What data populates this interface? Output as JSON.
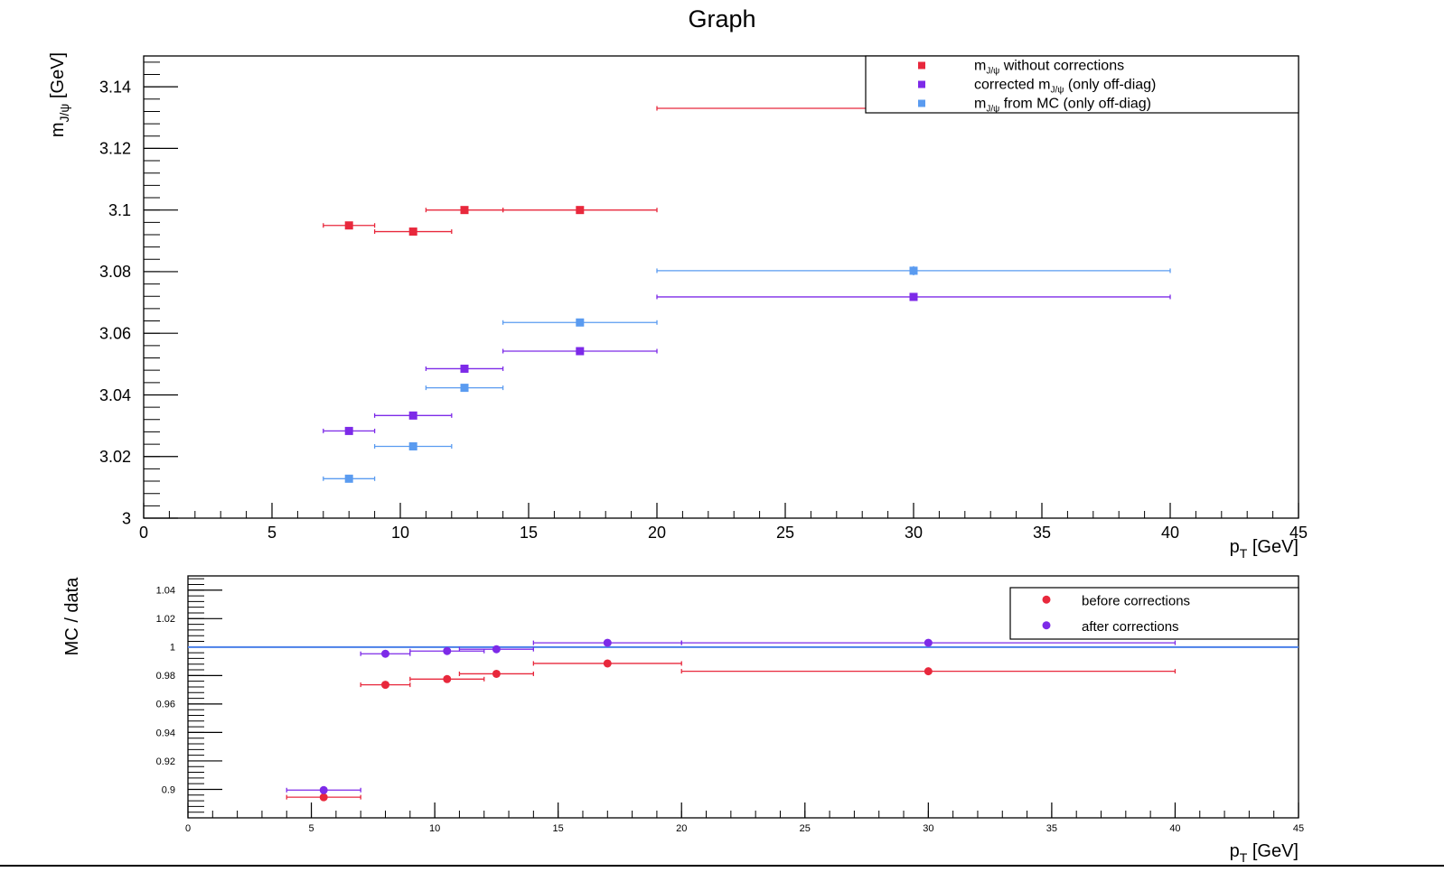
{
  "chart_data": [
    {
      "type": "scatter",
      "title": "Graph",
      "xlabel": "p",
      "xlabel_sub": "T",
      "xlabel_unit": " [GeV]",
      "ylabel": "m",
      "ylabel_sub": "J/ψ",
      "ylabel_unit": " [GeV]",
      "xlim": [
        0,
        45
      ],
      "ylim": [
        3.0,
        3.15
      ],
      "x_ticks": [
        0,
        5,
        10,
        15,
        20,
        25,
        30,
        35,
        40,
        45
      ],
      "x_tick_labels": [
        "0",
        "5",
        "10",
        "15",
        "20",
        "25",
        "30",
        "35",
        "40",
        "45"
      ],
      "y_ticks": [
        3.0,
        3.02,
        3.04,
        3.06,
        3.08,
        3.1,
        3.12,
        3.14
      ],
      "y_tick_labels": [
        "3",
        "3.02",
        "3.04",
        "3.06",
        "3.08",
        "3.1",
        "3.12",
        "3.14"
      ],
      "legend_position": "top-right",
      "marker": "square",
      "series": [
        {
          "legend_pre": "m",
          "legend_sub": "J/ψ",
          "legend_post": " without corrections",
          "color": "#e8283c",
          "points": [
            {
              "x": 8,
              "xlo": 7,
              "xhi": 9,
              "y": 3.095,
              "ey": 0.0008
            },
            {
              "x": 10.5,
              "xlo": 9,
              "xhi": 12,
              "y": 3.093,
              "ey": 0
            },
            {
              "x": 12.5,
              "xlo": 11,
              "xhi": 14,
              "y": 3.1,
              "ey": 0
            },
            {
              "x": 17,
              "xlo": 14,
              "xhi": 20,
              "y": 3.1,
              "ey": 0
            },
            {
              "x": 30,
              "xlo": 20,
              "xhi": 40,
              "y": 3.133,
              "ey": 0
            }
          ]
        },
        {
          "legend_pre": "corrected m",
          "legend_sub": "J/ψ",
          "legend_post": " (only off-diag)",
          "color": "#7d2ae8",
          "points": [
            {
              "x": 8,
              "xlo": 7,
              "xhi": 9,
              "y": 3.0283,
              "ey": 0
            },
            {
              "x": 10.5,
              "xlo": 9,
              "xhi": 12,
              "y": 3.0333,
              "ey": 0
            },
            {
              "x": 12.5,
              "xlo": 11,
              "xhi": 14,
              "y": 3.0485,
              "ey": 0
            },
            {
              "x": 17,
              "xlo": 14,
              "xhi": 20,
              "y": 3.0542,
              "ey": 0
            },
            {
              "x": 30,
              "xlo": 20,
              "xhi": 40,
              "y": 3.0718,
              "ey": 0
            }
          ]
        },
        {
          "legend_pre": "m",
          "legend_sub": "J/ψ",
          "legend_post": " from MC (only off-diag)",
          "color": "#5a9bf0",
          "points": [
            {
              "x": 8,
              "xlo": 7,
              "xhi": 9,
              "y": 3.0128,
              "ey": 0
            },
            {
              "x": 10.5,
              "xlo": 9,
              "xhi": 12,
              "y": 3.0233,
              "ey": 0
            },
            {
              "x": 12.5,
              "xlo": 11,
              "xhi": 14,
              "y": 3.0423,
              "ey": 0
            },
            {
              "x": 17,
              "xlo": 14,
              "xhi": 20,
              "y": 3.0635,
              "ey": 0
            },
            {
              "x": 30,
              "xlo": 20,
              "xhi": 40,
              "y": 3.0803,
              "ey": 0.0015
            }
          ]
        }
      ]
    },
    {
      "type": "scatter",
      "title": "",
      "xlabel": "p",
      "xlabel_sub": "T",
      "xlabel_unit": " [GeV]",
      "ylabel": "MC / data",
      "xlim": [
        0,
        45
      ],
      "ylim": [
        0.88,
        1.05
      ],
      "x_ticks": [
        0,
        5,
        10,
        15,
        20,
        25,
        30,
        35,
        40,
        45
      ],
      "x_tick_labels": [
        "0",
        "5",
        "10",
        "15",
        "20",
        "25",
        "30",
        "35",
        "40",
        "45"
      ],
      "y_ticks": [
        0.9,
        0.92,
        0.94,
        0.96,
        0.98,
        1.0,
        1.02,
        1.04
      ],
      "y_tick_labels": [
        "0.9",
        "0.92",
        "0.94",
        "0.96",
        "0.98",
        "1",
        "1.02",
        "1.04"
      ],
      "reference_line": {
        "y": 1.0,
        "color": "#4a7fe8"
      },
      "legend_position": "top-right",
      "marker": "circle",
      "series": [
        {
          "name": "before corrections",
          "color": "#e8283c",
          "points": [
            {
              "x": 5.5,
              "xlo": 4,
              "xhi": 7,
              "y": 0.8945
            },
            {
              "x": 8,
              "xlo": 7,
              "xhi": 9,
              "y": 0.9735
            },
            {
              "x": 10.5,
              "xlo": 9,
              "xhi": 12,
              "y": 0.9775
            },
            {
              "x": 12.5,
              "xlo": 11,
              "xhi": 14,
              "y": 0.9812
            },
            {
              "x": 17,
              "xlo": 14,
              "xhi": 20,
              "y": 0.9885
            },
            {
              "x": 30,
              "xlo": 20,
              "xhi": 40,
              "y": 0.983
            }
          ]
        },
        {
          "name": "after corrections",
          "color": "#7d2ae8",
          "points": [
            {
              "x": 5.5,
              "xlo": 4,
              "xhi": 7,
              "y": 0.8995
            },
            {
              "x": 8,
              "xlo": 7,
              "xhi": 9,
              "y": 0.9953
            },
            {
              "x": 10.5,
              "xlo": 9,
              "xhi": 12,
              "y": 0.9972
            },
            {
              "x": 12.5,
              "xlo": 11,
              "xhi": 14,
              "y": 0.9985
            },
            {
              "x": 17,
              "xlo": 14,
              "xhi": 20,
              "y": 1.003
            },
            {
              "x": 30,
              "xlo": 20,
              "xhi": 40,
              "y": 1.003
            }
          ]
        }
      ]
    }
  ]
}
